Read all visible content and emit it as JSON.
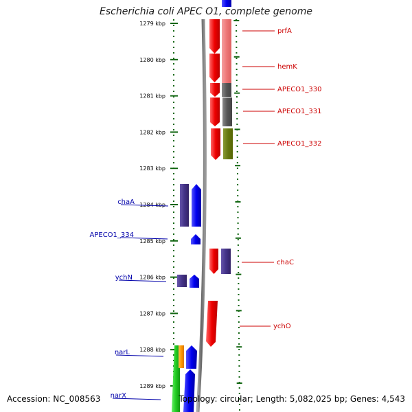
{
  "title": "Escherichia coli APEC O1, complete genome",
  "footer": {
    "accession": "Accession: NC_008563",
    "topology": "Topology: circular; Length: 5,082,025 bp; Genes: 4,543"
  },
  "colors": {
    "forward_cds": "#0000ee",
    "reverse_cds": "#ee0000",
    "light_red": "#ee7777",
    "dark_gray": "#555555",
    "olive": "#667711",
    "purple": "#443388",
    "green": "#22cc22",
    "orange": "#ff9900",
    "tick_green": "#116611",
    "backbone": "#888888"
  },
  "ticks": [
    {
      "label": "1279 kbp",
      "kbp": 1279
    },
    {
      "label": "1280 kbp",
      "kbp": 1280
    },
    {
      "label": "1281 kbp",
      "kbp": 1281
    },
    {
      "label": "1282 kbp",
      "kbp": 1282
    },
    {
      "label": "1283 kbp",
      "kbp": 1283
    },
    {
      "label": "1284 kbp",
      "kbp": 1284
    },
    {
      "label": "1285 kbp",
      "kbp": 1285
    },
    {
      "label": "1286 kbp",
      "kbp": 1286
    },
    {
      "label": "1287 kbp",
      "kbp": 1287
    },
    {
      "label": "1288 kbp",
      "kbp": 1288
    },
    {
      "label": "1289 kbp",
      "kbp": 1289
    }
  ],
  "genes_right": [
    {
      "name": "prfA"
    },
    {
      "name": "hemK"
    },
    {
      "name": "APECO1_330"
    },
    {
      "name": "APECO1_331"
    },
    {
      "name": "APECO1_332"
    },
    {
      "name": "chaC"
    },
    {
      "name": "ychO"
    }
  ],
  "genes_left": [
    {
      "name": "chaA"
    },
    {
      "name": "APECO1_334"
    },
    {
      "name": "ychN"
    },
    {
      "name": "narL"
    },
    {
      "name": "narX"
    }
  ]
}
